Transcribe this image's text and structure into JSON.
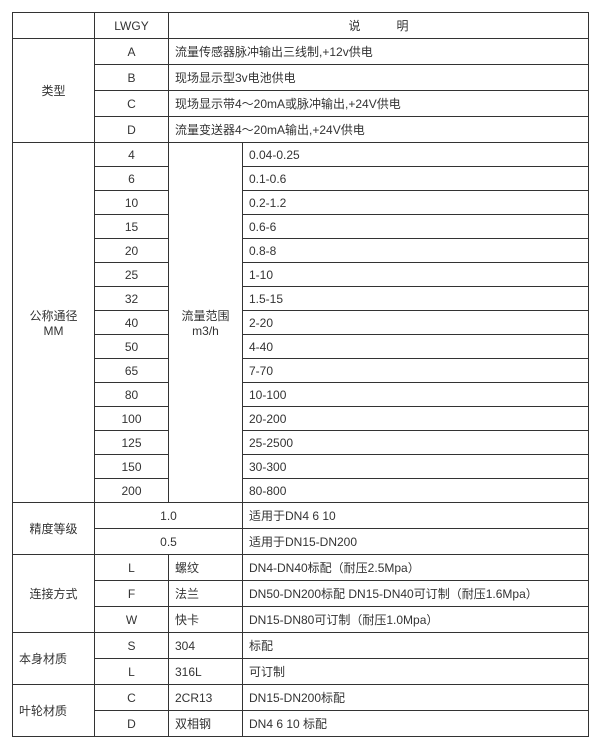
{
  "header": {
    "blank": "",
    "model": "LWGY",
    "desc": "说　　　明"
  },
  "type": {
    "label": "类型",
    "rows": [
      {
        "code": "A",
        "desc": "流量传感器脉冲输出三线制,+12v供电"
      },
      {
        "code": "B",
        "desc": "现场显示型3v电池供电"
      },
      {
        "code": "C",
        "desc": "现场显示带4～20mA或脉冲输出,+24V供电"
      },
      {
        "code": "D",
        "desc": "流量变送器4～20mA输出,+24V供电"
      }
    ]
  },
  "diameter": {
    "label1": "公称通径",
    "label2": "MM",
    "rangeLabel1": "流量范围",
    "rangeLabel2": "m3/h",
    "rows": [
      {
        "dn": "4",
        "range": "0.04-0.25"
      },
      {
        "dn": "6",
        "range": "0.1-0.6"
      },
      {
        "dn": "10",
        "range": "0.2-1.2"
      },
      {
        "dn": "15",
        "range": "0.6-6"
      },
      {
        "dn": "20",
        "range": "0.8-8"
      },
      {
        "dn": "25",
        "range": "1-10"
      },
      {
        "dn": "32",
        "range": "1.5-15"
      },
      {
        "dn": "40",
        "range": "2-20"
      },
      {
        "dn": "50",
        "range": "4-40"
      },
      {
        "dn": "65",
        "range": "7-70"
      },
      {
        "dn": "80",
        "range": "10-100"
      },
      {
        "dn": "100",
        "range": "20-200"
      },
      {
        "dn": "125",
        "range": "25-2500"
      },
      {
        "dn": "150",
        "range": "30-300"
      },
      {
        "dn": "200",
        "range": "80-800"
      }
    ]
  },
  "accuracy": {
    "label": "精度等级",
    "rows": [
      {
        "val": "1.0",
        "desc": "适用于DN4  6  10"
      },
      {
        "val": "0.5",
        "desc": "适用于DN15-DN200"
      }
    ]
  },
  "connection": {
    "label": "连接方式",
    "rows": [
      {
        "code": "L",
        "type": "螺纹",
        "desc": "DN4-DN40标配（耐压2.5Mpa）"
      },
      {
        "code": "F",
        "type": "法兰",
        "desc": "DN50-DN200标配 DN15-DN40可订制（耐压1.6Mpa）"
      },
      {
        "code": "W",
        "type": "快卡",
        "desc": "DN15-DN80可订制（耐压1.0Mpa）"
      }
    ]
  },
  "bodyMaterial": {
    "label": "本身材质",
    "rows": [
      {
        "code": "S",
        "type": "304",
        "desc": "标配"
      },
      {
        "code": "L",
        "type": "316L",
        "desc": "可订制"
      }
    ]
  },
  "impellerMaterial": {
    "label": "叶轮材质",
    "rows": [
      {
        "code": "C",
        "type": "2CR13",
        "desc": "DN15-DN200标配"
      },
      {
        "code": "D",
        "type": "双相钢",
        "desc": "DN4 6 10 标配"
      }
    ]
  }
}
